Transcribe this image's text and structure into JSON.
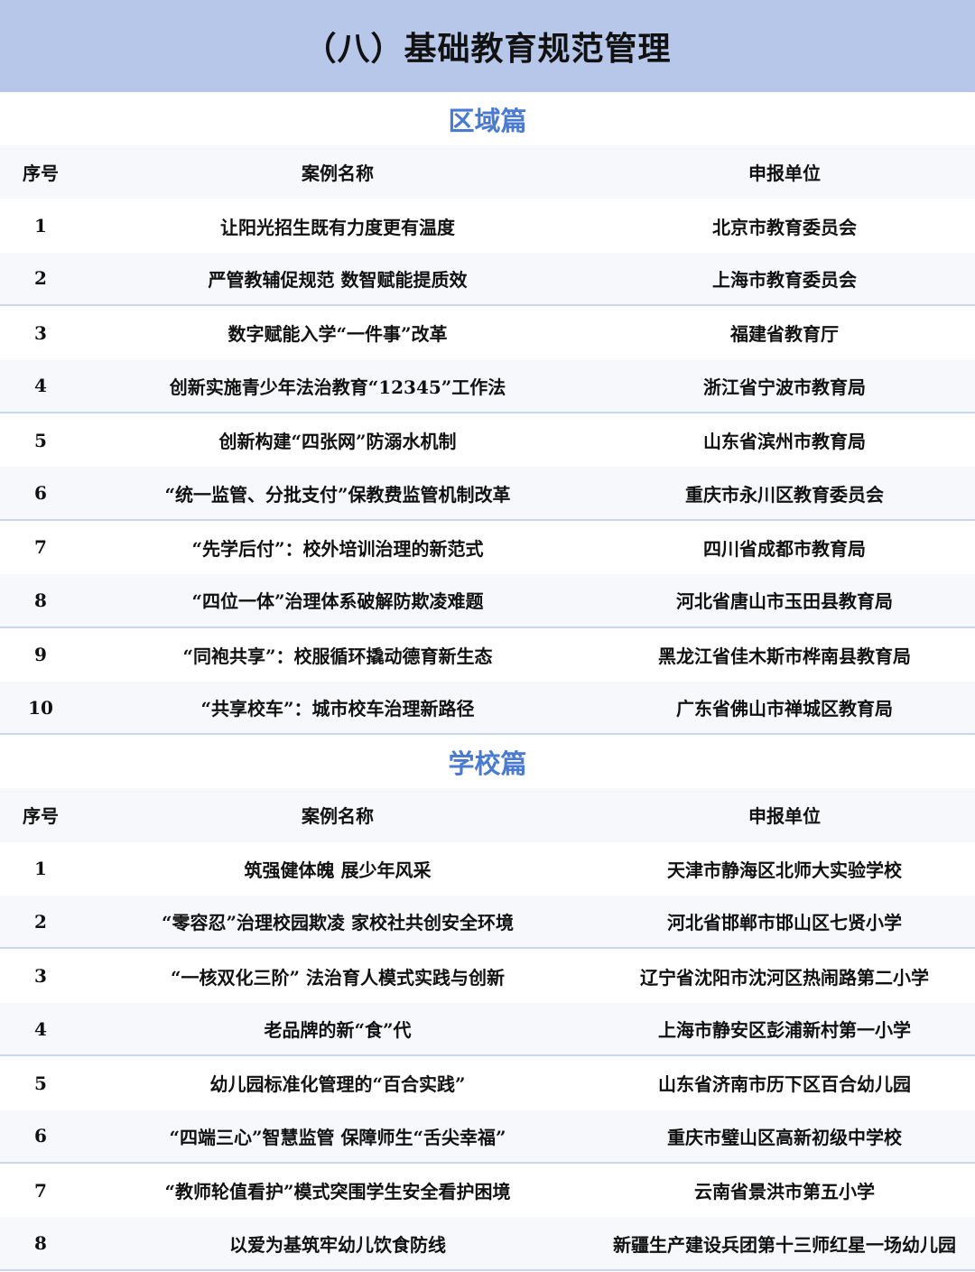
{
  "title": "（八）基础教育规范管理",
  "columns": {
    "no": "序号",
    "name": "案例名称",
    "unit": "申报单位"
  },
  "sections": [
    {
      "title": "区域篇",
      "rows": [
        [
          "1",
          "让阳光招生既有力度更有温度",
          "北京市教育委员会"
        ],
        [
          "2",
          "严管教辅促规范 数智赋能提质效",
          "上海市教育委员会"
        ],
        [
          "3",
          "数字赋能入学“一件事”改革",
          "福建省教育厅"
        ],
        [
          "4",
          "创新实施青少年法治教育“12345”工作法",
          "浙江省宁波市教育局"
        ],
        [
          "5",
          "创新构建“四张网”防溺水机制",
          "山东省滨州市教育局"
        ],
        [
          "6",
          "“统一监管、分批支付”保教费监管机制改革",
          "重庆市永川区教育委员会"
        ],
        [
          "7",
          "“先学后付”：校外培训治理的新范式",
          "四川省成都市教育局"
        ],
        [
          "8",
          "“四位一体”治理体系破解防欺凌难题",
          "河北省唐山市玉田县教育局"
        ],
        [
          "9",
          "“同袍共享”：校服循环撬动德育新生态",
          "黑龙江省佳木斯市桦南县教育局"
        ],
        [
          "10",
          "“共享校车”：城市校车治理新路径",
          "广东省佛山市禅城区教育局"
        ]
      ]
    },
    {
      "title": "学校篇",
      "rows": [
        [
          "1",
          "筑强健体魄 展少年风采",
          "天津市静海区北师大实验学校"
        ],
        [
          "2",
          "“零容忍”治理校园欺凌 家校社共创安全环境",
          "河北省邯郸市邯山区七贤小学"
        ],
        [
          "3",
          "“一核双化三阶” 法治育人模式实践与创新",
          "辽宁省沈阳市沈河区热闹路第二小学"
        ],
        [
          "4",
          "老品牌的新“食”代",
          "上海市静安区彭浦新村第一小学"
        ],
        [
          "5",
          "幼儿园标准化管理的“百合实践”",
          "山东省济南市历下区百合幼儿园"
        ],
        [
          "6",
          "“四端三心”智慧监管 保障师生“舌尖幸福”",
          "重庆市璧山区高新初级中学校"
        ],
        [
          "7",
          "“教师轮值看护”模式突围学生安全看护困境",
          "云南省景洪市第五小学"
        ],
        [
          "8",
          "以爱为基筑牢幼儿饮食防线",
          "新疆生产建设兵团第十三师红星一场幼儿园"
        ]
      ]
    }
  ],
  "colors": {
    "banner": "#b6c7e9",
    "section_title": "#4a7bd0",
    "stripe": "#f6f8fc",
    "divider": "#c9d6ee"
  }
}
